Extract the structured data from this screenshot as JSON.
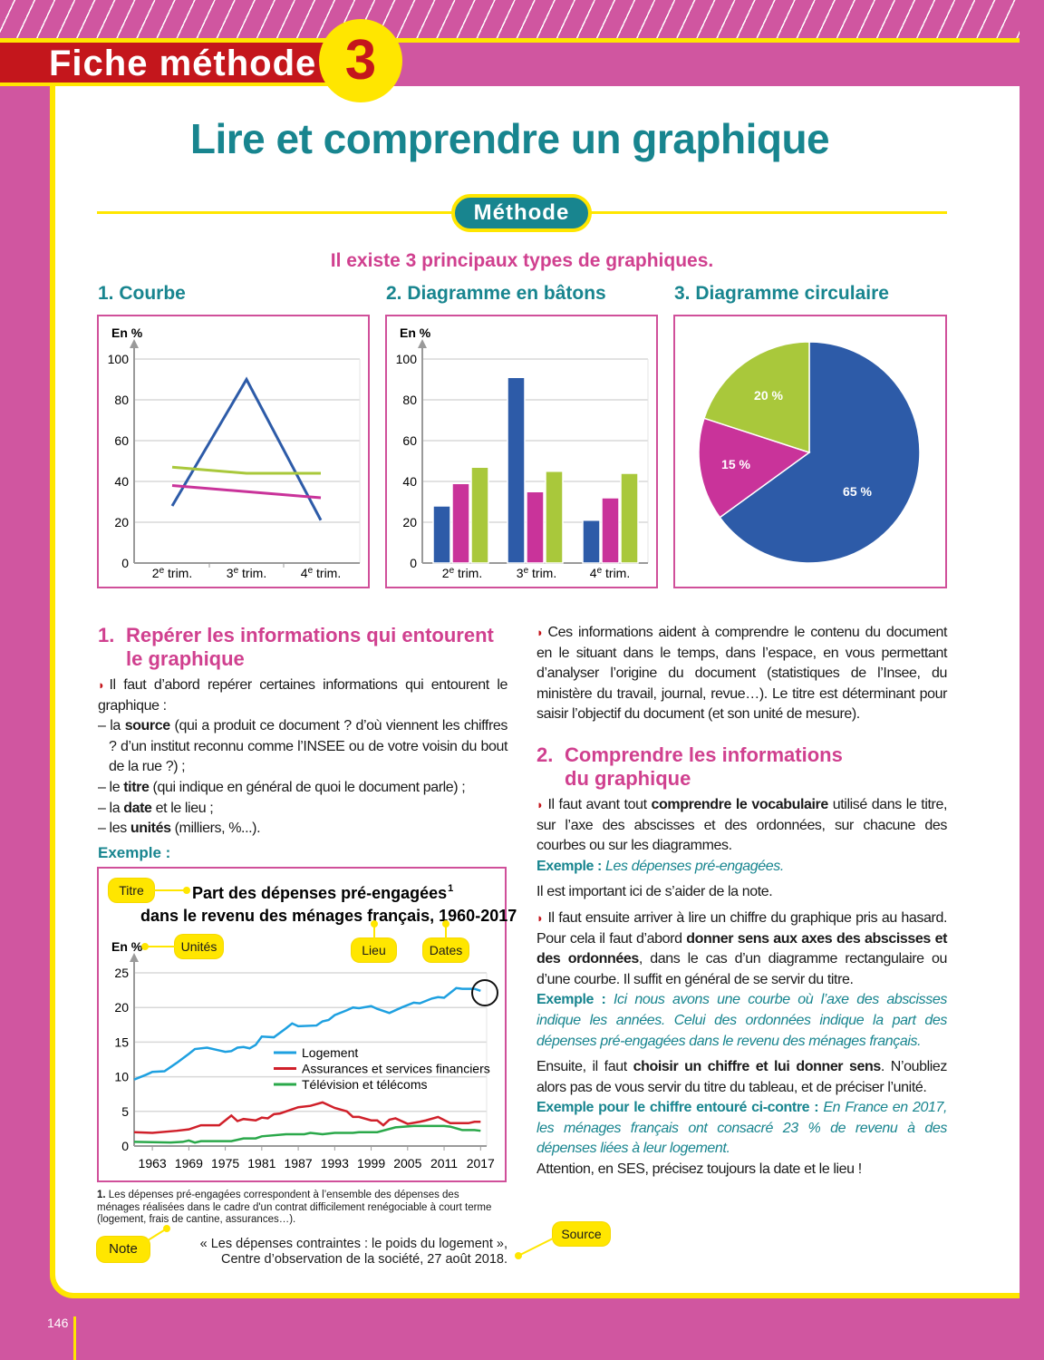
{
  "header": {
    "label": "Fiche méthode",
    "number": "3"
  },
  "title": "Lire et comprendre un graphique",
  "method_pill": "Méthode",
  "intro": "Il existe 3 principaux types de graphiques.",
  "chart_headings": [
    "1. Courbe",
    "2. Diagramme en bâtons",
    "3. Diagramme circulaire"
  ],
  "colors": {
    "blue": "#2d5ba8",
    "magenta": "#c9339a",
    "green": "#a9c83b",
    "teal": "#18858f",
    "pink": "#d0408f",
    "yellow": "#ffe600",
    "red": "#c4161c"
  },
  "chart_data": [
    {
      "type": "line",
      "ylabel": "En %",
      "categories": [
        "2e trim.",
        "3e trim.",
        "4e trim."
      ],
      "ylim": [
        0,
        100
      ],
      "yticks": [
        0,
        20,
        40,
        60,
        80,
        100
      ],
      "grid": true,
      "series": [
        {
          "color": "#2d5ba8",
          "values": [
            28,
            90,
            21
          ]
        },
        {
          "color": "#a9c83b",
          "values": [
            47,
            44,
            44
          ]
        },
        {
          "color": "#c9339a",
          "values": [
            38,
            35,
            32
          ]
        }
      ]
    },
    {
      "type": "bar",
      "ylabel": "En %",
      "categories": [
        "2e trim.",
        "3e trim.",
        "4e trim."
      ],
      "ylim": [
        0,
        100
      ],
      "yticks": [
        0,
        20,
        40,
        60,
        80,
        100
      ],
      "grid": true,
      "series": [
        {
          "color": "#2d5ba8",
          "values": [
            28,
            91,
            21
          ]
        },
        {
          "color": "#c9339a",
          "values": [
            39,
            35,
            32
          ]
        },
        {
          "color": "#a9c83b",
          "values": [
            47,
            45,
            44
          ]
        }
      ]
    },
    {
      "type": "pie",
      "slices": [
        {
          "label": "65 %",
          "value": 65,
          "color": "#2d5ba8"
        },
        {
          "label": "15 %",
          "value": 15,
          "color": "#c9339a"
        },
        {
          "label": "20 %",
          "value": 20,
          "color": "#a9c83b"
        }
      ]
    },
    {
      "type": "line",
      "title": "Part des dépenses pré-engagées¹ dans le revenu des ménages français, 1960-2017",
      "title_line1": "Part des dépenses pré-engagées",
      "title_sup": "1",
      "title_line2": "dans le revenu des ménages français, 1960-2017",
      "ylabel": "En %",
      "xlim": [
        1960,
        2018
      ],
      "xticks": [
        1963,
        1969,
        1975,
        1981,
        1987,
        1993,
        1999,
        2005,
        2011,
        2017
      ],
      "ylim": [
        0,
        25
      ],
      "yticks": [
        0,
        5,
        10,
        15,
        20,
        25
      ],
      "grid": true,
      "legend": "center-right",
      "series": [
        {
          "name": "Logement",
          "color": "#1ea0e0",
          "x": [
            1960,
            1962,
            1963,
            1965,
            1967,
            1969,
            1970,
            1972,
            1974,
            1975,
            1976,
            1977,
            1978,
            1979,
            1980,
            1981,
            1983,
            1985,
            1986,
            1987,
            1990,
            1991,
            1992,
            1993,
            1995,
            1996,
            1997,
            1999,
            2000,
            2002,
            2004,
            2006,
            2007,
            2009,
            2010,
            2011,
            2013,
            2014,
            2015,
            2016,
            2017
          ],
          "y": [
            9.6,
            10.3,
            10.7,
            10.8,
            12,
            13.3,
            14,
            14.2,
            13.8,
            13.6,
            13.7,
            14.2,
            14.3,
            14.1,
            14.6,
            15.8,
            15.7,
            17,
            17.7,
            17.3,
            17.4,
            18,
            18.2,
            18.9,
            19.6,
            20,
            19.9,
            20.2,
            19.8,
            19.2,
            20,
            20.7,
            20.6,
            21.3,
            21.5,
            21.4,
            22.8,
            22.7,
            22.7,
            22.7,
            22.4
          ]
        },
        {
          "name": "Assurances et services financiers",
          "color": "#d0202a",
          "x": [
            1960,
            1963,
            1967,
            1969,
            1971,
            1974,
            1976,
            1977,
            1978,
            1980,
            1981,
            1982,
            1983,
            1984,
            1987,
            1989,
            1991,
            1993,
            1995,
            1996,
            1997,
            1999,
            2000,
            2001,
            2002,
            2003,
            2005,
            2007,
            2008,
            2010,
            2012,
            2015,
            2016,
            2017
          ],
          "y": [
            2.0,
            1.9,
            2.2,
            2.4,
            3.0,
            3.0,
            4.4,
            3.6,
            3.9,
            3.7,
            4.1,
            4.0,
            4.6,
            4.7,
            5.6,
            5.8,
            6.3,
            5.5,
            5.0,
            4.2,
            4.2,
            3.7,
            3.7,
            3.0,
            3.8,
            4.0,
            3.2,
            3.5,
            3.7,
            4.2,
            3.3,
            3.3,
            3.5,
            3.5
          ]
        },
        {
          "name": "Télévision et télécoms",
          "color": "#2aa84a",
          "x": [
            1960,
            1966,
            1968,
            1969,
            1970,
            1971,
            1976,
            1978,
            1980,
            1981,
            1985,
            1988,
            1989,
            1991,
            1993,
            1996,
            1997,
            2000,
            2003,
            2006,
            2011,
            2012,
            2014,
            2016,
            2017
          ],
          "y": [
            0.6,
            0.5,
            0.6,
            0.8,
            0.5,
            0.7,
            0.7,
            1.1,
            1.1,
            1.4,
            1.7,
            1.7,
            1.9,
            1.7,
            1.9,
            1.9,
            2.0,
            2.0,
            2.7,
            2.9,
            2.9,
            2.8,
            2.3,
            2.3,
            2.2
          ]
        }
      ]
    }
  ],
  "section1": {
    "number": "1.",
    "title": "Repérer les informations qui entourent le graphique",
    "paragraphs": [
      {
        "cls": "",
        "bullet": true,
        "segs": [
          [
            "Il faut d’abord repérer certaines informations qui entourent le graphique :",
            ""
          ]
        ]
      },
      {
        "cls": "dash",
        "segs": [
          [
            "– la ",
            ""
          ],
          [
            "source",
            "b"
          ],
          [
            " (qui a produit ce document ? d’où viennent les chiffres ? d’un institut reconnu comme l’INSEE ou de votre voisin du bout de la rue ?) ;",
            ""
          ]
        ]
      },
      {
        "cls": "dash",
        "segs": [
          [
            "– le ",
            ""
          ],
          [
            "titre",
            "b"
          ],
          [
            " (qui indique en général de quoi le document parle) ;",
            ""
          ]
        ]
      },
      {
        "cls": "dash",
        "segs": [
          [
            "– la ",
            ""
          ],
          [
            "date",
            "b"
          ],
          [
            " et le lieu ;",
            ""
          ]
        ]
      },
      {
        "cls": "dash",
        "segs": [
          [
            "– les ",
            ""
          ],
          [
            "unités",
            "b"
          ],
          [
            " (milliers, %...).",
            ""
          ]
        ]
      }
    ],
    "example_label": "Exemple :"
  },
  "annotations": {
    "titre": "Titre",
    "unites": "Unités",
    "lieu": "Lieu",
    "dates": "Dates",
    "note": "Note",
    "source": "Source"
  },
  "footnote": {
    "num": "1.",
    "text": " Les dépenses pré-engagées correspondent à l’ensemble des dépenses des ménages réalisées dans le cadre d'un contrat difficilement renégociable à court terme (logement, frais de cantine, assurances…)."
  },
  "source": {
    "line1": "« Les dépenses contraintes : le poids du logement »,",
    "line2": "Centre d’observation de la société, 27 août 2018."
  },
  "right_intro": {
    "bullet": true,
    "segs": [
      [
        "Ces informations aident à comprendre le contenu du document en le situant dans le temps, dans l’espace, en vous permettant d’analyser l’origine du document (statistiques de l’Insee, du ministère du travail, journal, revue…). Le titre est déterminant pour saisir l’objectif du document (et son unité de mesure).",
        ""
      ]
    ]
  },
  "section2": {
    "number": "2.",
    "title": "Comprendre les informations du graphique",
    "paragraphs": [
      {
        "cls": "",
        "bullet": true,
        "segs": [
          [
            "Il faut avant tout ",
            ""
          ],
          [
            "comprendre le vocabulaire",
            "b"
          ],
          [
            " utilisé dans le titre, sur l’axe des abscisses et des ordonnées, sur chacune des courbes ou sur les diagrammes.",
            ""
          ]
        ]
      },
      {
        "cls": "",
        "segs": [
          [
            "Exemple : ",
            "ex"
          ],
          [
            "Les dépenses pré-engagées.",
            "exi"
          ]
        ]
      },
      {
        "cls": "gap",
        "segs": [
          [
            "Il est important ici de s’aider de la note.",
            ""
          ]
        ]
      },
      {
        "cls": "gap",
        "bullet": true,
        "segs": [
          [
            "Il faut ensuite arriver à lire un chiffre du graphique pris au hasard. Pour cela il faut d’abord ",
            ""
          ],
          [
            "donner sens aux axes des abscisses et des ordonnées",
            "b"
          ],
          [
            ", dans le cas d’un diagramme rectangulaire ou d’une courbe. Il suffit en général de se servir du titre.",
            ""
          ]
        ]
      },
      {
        "cls": "",
        "segs": [
          [
            "Exemple : ",
            "ex"
          ],
          [
            "Ici nous avons une courbe où l’axe des abscisses indique les années. Celui des ordonnées indique la part des dépenses pré-engagées dans le revenu des ménages français.",
            "exi"
          ]
        ]
      },
      {
        "cls": "gap",
        "segs": [
          [
            "Ensuite, il faut ",
            ""
          ],
          [
            "choisir un chiffre et lui donner sens",
            "b"
          ],
          [
            ". N’oubliez alors pas de vous servir du titre du tableau, et de préciser l’unité.",
            ""
          ]
        ]
      },
      {
        "cls": "",
        "segs": [
          [
            "Exemple pour le chiffre entouré ci-contre : ",
            "ex"
          ],
          [
            "En France en 2017, les ménages français ont consacré 23 % de revenu à des dépenses liées à leur logement.",
            "exi"
          ]
        ]
      },
      {
        "cls": "",
        "segs": [
          [
            "Attention, en SES, précisez toujours la date et le lieu !",
            ""
          ]
        ]
      }
    ]
  },
  "page_number": "146"
}
